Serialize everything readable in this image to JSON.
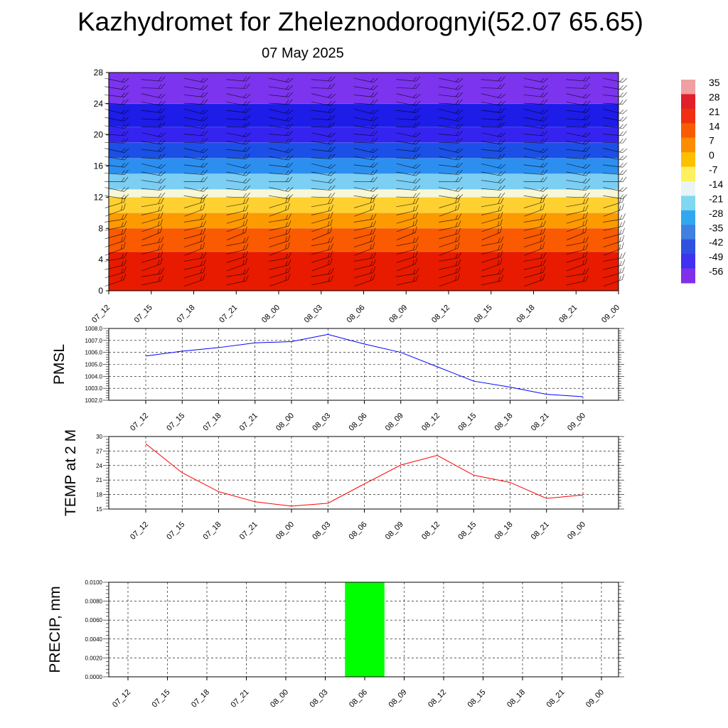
{
  "title": "Kazhydromet for Zheleznodorognyi(52.07 65.65)",
  "subtitle": "07 May 2025",
  "time_labels": [
    "07_12",
    "07_15",
    "07_18",
    "07_21",
    "08_00",
    "08_03",
    "08_06",
    "08_09",
    "08_12",
    "08_15",
    "08_18",
    "08_21",
    "09_00"
  ],
  "chart_data": [
    {
      "type": "heatmap",
      "y_ticks": [
        0,
        4,
        8,
        12,
        16,
        20,
        24,
        28
      ],
      "ylim": [
        0,
        28
      ],
      "colorbar": {
        "labels": [
          "35",
          "28",
          "21",
          "14",
          "7",
          "0",
          "-7",
          "-14",
          "-21",
          "-28",
          "-35",
          "-42",
          "-49",
          "-56"
        ],
        "colors": [
          "#f0a0a0",
          "#e0202a",
          "#f03010",
          "#f85c00",
          "#fc8c00",
          "#fdc000",
          "#fff060",
          "#e8f4f8",
          "#80d8f0",
          "#30a8f0",
          "#4080e0",
          "#3050e0",
          "#4030f0",
          "#8030e8"
        ]
      },
      "bands": [
        {
          "y_from": 0,
          "y_to": 5,
          "color": "#e81a00"
        },
        {
          "y_from": 5,
          "y_to": 8,
          "color": "#fa5a00"
        },
        {
          "y_from": 8,
          "y_to": 10,
          "color": "#fd9a00"
        },
        {
          "y_from": 10,
          "y_to": 12,
          "color": "#fed030"
        },
        {
          "y_from": 12,
          "y_to": 13,
          "color": "#f6f7d8"
        },
        {
          "y_from": 13,
          "y_to": 15,
          "color": "#7ccef2"
        },
        {
          "y_from": 15,
          "y_to": 17,
          "color": "#2c8ff0"
        },
        {
          "y_from": 17,
          "y_to": 19,
          "color": "#1b4fe6"
        },
        {
          "y_from": 19,
          "y_to": 21,
          "color": "#3524f0"
        },
        {
          "y_from": 21,
          "y_to": 24,
          "color": "#1e1ce8"
        },
        {
          "y_from": 24,
          "y_to": 28,
          "color": "#7c34ee"
        }
      ]
    },
    {
      "type": "line",
      "ylabel": "PMSL",
      "y_ticks": [
        "1002.0",
        "1003.0",
        "1004.0",
        "1005.0",
        "1006.0",
        "1007.0",
        "1008.0"
      ],
      "ylim": [
        1002,
        1008
      ],
      "color": "#0000ff",
      "values": [
        1005.7,
        1006.1,
        1006.4,
        1006.8,
        1006.9,
        1007.5,
        1006.7,
        1006.0,
        1004.8,
        1003.6,
        1003.1,
        1002.5,
        1002.3
      ]
    },
    {
      "type": "line",
      "ylabel": "TEMP at 2 M",
      "y_ticks": [
        "15",
        "18",
        "21",
        "24",
        "27",
        "30"
      ],
      "ylim": [
        15,
        30
      ],
      "color": "#ff0000",
      "values": [
        28.5,
        22.5,
        18.6,
        16.5,
        15.6,
        16.2,
        20.2,
        24.1,
        26.1,
        22.0,
        20.5,
        17.2,
        17.9
      ]
    },
    {
      "type": "bar",
      "ylabel": "PRECIP, mm",
      "y_ticks": [
        "0.0000",
        "0.0020",
        "0.0040",
        "0.0060",
        "0.0080",
        "0.0100"
      ],
      "ylim": [
        0,
        0.01
      ],
      "color": "#00ff00",
      "values": [
        0,
        0,
        0,
        0,
        0,
        0,
        0.01,
        0,
        0,
        0,
        0,
        0,
        0
      ]
    }
  ]
}
